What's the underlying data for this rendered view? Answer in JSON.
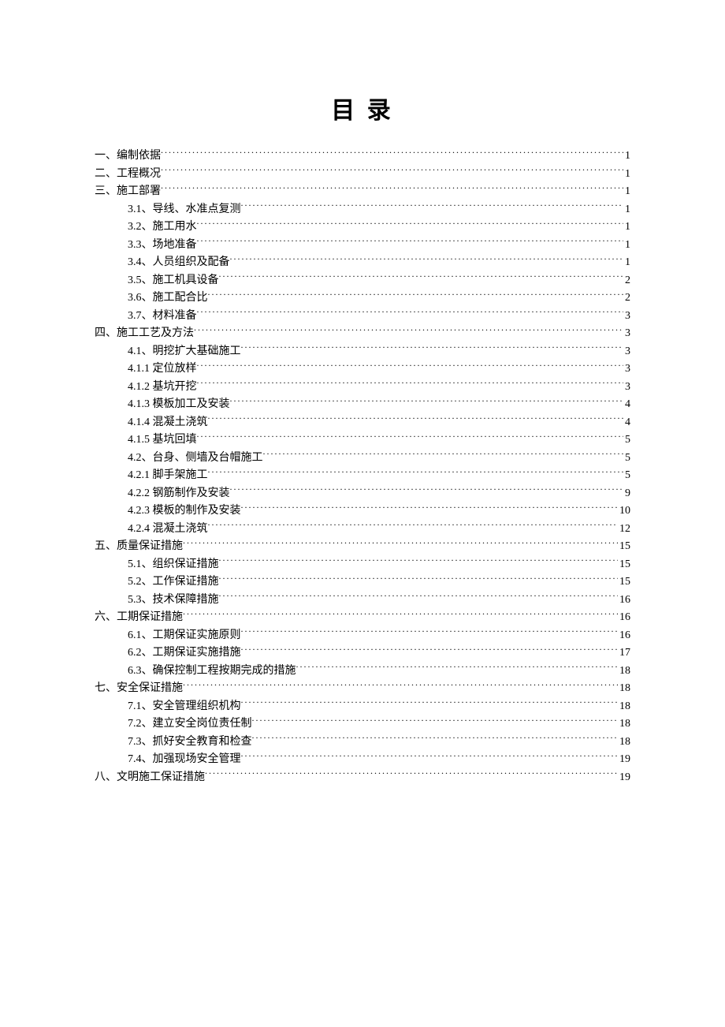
{
  "title": "目 录",
  "toc": [
    {
      "level": 1,
      "label": "一、编制依据",
      "page": "1"
    },
    {
      "level": 1,
      "label": "二、工程概况",
      "page": "1"
    },
    {
      "level": 1,
      "label": "三、施工部署",
      "page": "1"
    },
    {
      "level": 2,
      "label": "3.1、导线、水准点复测",
      "page": "1"
    },
    {
      "level": 2,
      "label": "3.2、施工用水",
      "page": "1"
    },
    {
      "level": 2,
      "label": "3.3、场地准备",
      "page": "1"
    },
    {
      "level": 2,
      "label": "3.4、人员组织及配备",
      "page": "1"
    },
    {
      "level": 2,
      "label": "3.5、施工机具设备",
      "page": "2"
    },
    {
      "level": 2,
      "label": "3.6、施工配合比",
      "page": "2"
    },
    {
      "level": 2,
      "label": "3.7、材料准备",
      "page": "3"
    },
    {
      "level": 1,
      "label": "四、施工工艺及方法",
      "page": "3"
    },
    {
      "level": 2,
      "label": "4.1、明挖扩大基础施工",
      "page": "3"
    },
    {
      "level": 2,
      "label": "4.1.1 定位放样",
      "page": "3"
    },
    {
      "level": 2,
      "label": "4.1.2 基坑开挖",
      "page": "3"
    },
    {
      "level": 2,
      "label": "4.1.3 模板加工及安装",
      "page": "4"
    },
    {
      "level": 2,
      "label": "4.1.4 混凝土浇筑",
      "page": "4"
    },
    {
      "level": 2,
      "label": "4.1.5 基坑回填",
      "page": "5"
    },
    {
      "level": 2,
      "label": "4.2、台身、侧墙及台帽施工",
      "page": "5"
    },
    {
      "level": 2,
      "label": "4.2.1 脚手架施工",
      "page": "5"
    },
    {
      "level": 2,
      "label": "4.2.2 钢筋制作及安装",
      "page": "9"
    },
    {
      "level": 2,
      "label": "4.2.3 模板的制作及安装",
      "page": "10"
    },
    {
      "level": 2,
      "label": "4.2.4 混凝土浇筑",
      "page": "12"
    },
    {
      "level": 1,
      "label": "五、质量保证措施",
      "page": "15"
    },
    {
      "level": 2,
      "label": "5.1、组织保证措施",
      "page": "15"
    },
    {
      "level": 2,
      "label": "5.2、工作保证措施",
      "page": "15"
    },
    {
      "level": 2,
      "label": "5.3、技术保障措施",
      "page": "16"
    },
    {
      "level": 1,
      "label": "六、工期保证措施",
      "page": "16"
    },
    {
      "level": 2,
      "label": "6.1、工期保证实施原则",
      "page": "16"
    },
    {
      "level": 2,
      "label": "6.2、工期保证实施措施",
      "page": "17"
    },
    {
      "level": 2,
      "label": "6.3、确保控制工程按期完成的措施",
      "page": "18"
    },
    {
      "level": 1,
      "label": "七、安全保证措施",
      "page": "18"
    },
    {
      "level": 2,
      "label": "7.1、安全管理组织机构",
      "page": "18"
    },
    {
      "level": 2,
      "label": "7.2、建立安全岗位责任制",
      "page": "18"
    },
    {
      "level": 2,
      "label": "7.3、抓好安全教育和检查",
      "page": "18"
    },
    {
      "level": 2,
      "label": "7.4、加强现场安全管理",
      "page": "19"
    },
    {
      "level": 1,
      "label": "八、文明施工保证措施",
      "page": "19"
    }
  ]
}
